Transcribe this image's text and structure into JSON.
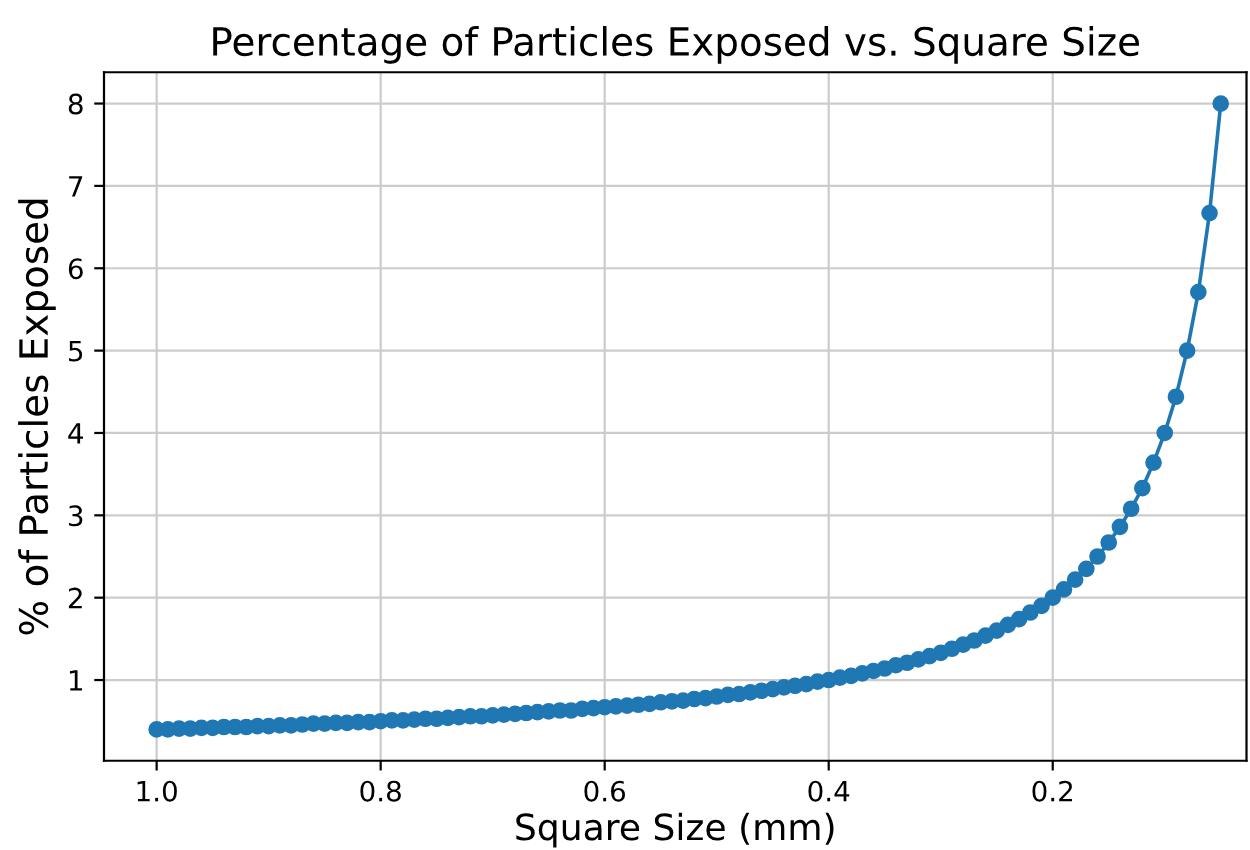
{
  "chart_data": {
    "type": "line",
    "title": "Percentage of Particles Exposed vs. Square Size",
    "xlabel": "Square Size (mm)",
    "ylabel": "% of Particles Exposed",
    "x": [
      1.0,
      0.99,
      0.98,
      0.97,
      0.96,
      0.95,
      0.94,
      0.93,
      0.92,
      0.91,
      0.9,
      0.89,
      0.88,
      0.87,
      0.86,
      0.85,
      0.84,
      0.83,
      0.82,
      0.81,
      0.8,
      0.79,
      0.78,
      0.77,
      0.76,
      0.75,
      0.74,
      0.73,
      0.72,
      0.71,
      0.7,
      0.69,
      0.68,
      0.67,
      0.66,
      0.65,
      0.64,
      0.63,
      0.62,
      0.61,
      0.6,
      0.59,
      0.58,
      0.57,
      0.56,
      0.55,
      0.54,
      0.53,
      0.52,
      0.51,
      0.5,
      0.49,
      0.48,
      0.47,
      0.46,
      0.45,
      0.44,
      0.43,
      0.42,
      0.41,
      0.4,
      0.39,
      0.38,
      0.37,
      0.36,
      0.35,
      0.34,
      0.33,
      0.32,
      0.31,
      0.3,
      0.29,
      0.28,
      0.27,
      0.26,
      0.25,
      0.24,
      0.23,
      0.22,
      0.21,
      0.2,
      0.19,
      0.18,
      0.17,
      0.16,
      0.15,
      0.14,
      0.13,
      0.12,
      0.11,
      0.1,
      0.09,
      0.08,
      0.07,
      0.06,
      0.05
    ],
    "series": [
      {
        "color": "#1f77b4",
        "values": [
          0.4,
          0.4,
          0.41,
          0.41,
          0.42,
          0.42,
          0.43,
          0.43,
          0.43,
          0.44,
          0.44,
          0.45,
          0.45,
          0.46,
          0.47,
          0.47,
          0.48,
          0.48,
          0.49,
          0.49,
          0.5,
          0.51,
          0.51,
          0.52,
          0.53,
          0.53,
          0.54,
          0.55,
          0.56,
          0.56,
          0.57,
          0.58,
          0.59,
          0.6,
          0.61,
          0.62,
          0.63,
          0.63,
          0.65,
          0.66,
          0.67,
          0.68,
          0.69,
          0.7,
          0.71,
          0.73,
          0.74,
          0.75,
          0.77,
          0.78,
          0.8,
          0.82,
          0.83,
          0.85,
          0.87,
          0.89,
          0.91,
          0.93,
          0.95,
          0.98,
          1.0,
          1.03,
          1.05,
          1.08,
          1.11,
          1.14,
          1.18,
          1.21,
          1.25,
          1.29,
          1.33,
          1.38,
          1.43,
          1.48,
          1.54,
          1.6,
          1.67,
          1.74,
          1.82,
          1.9,
          2.0,
          2.1,
          2.22,
          2.35,
          2.5,
          2.67,
          2.86,
          3.08,
          3.33,
          3.64,
          4.0,
          4.44,
          5.0,
          5.71,
          6.67,
          8.0
        ]
      }
    ],
    "xlim": [
      1.047,
      0.027
    ],
    "xticks": [
      {
        "value": 1.0,
        "label": "1.0"
      },
      {
        "value": 0.8,
        "label": "0.8"
      },
      {
        "value": 0.6,
        "label": "0.6"
      },
      {
        "value": 0.4,
        "label": "0.4"
      },
      {
        "value": 0.2,
        "label": "0.2"
      }
    ],
    "ylim": [
      0.02,
      8.38
    ],
    "yticks": [
      1,
      2,
      3,
      4,
      5,
      6,
      7,
      8
    ],
    "grid": true,
    "marker": "circle",
    "line_style": "solid"
  }
}
